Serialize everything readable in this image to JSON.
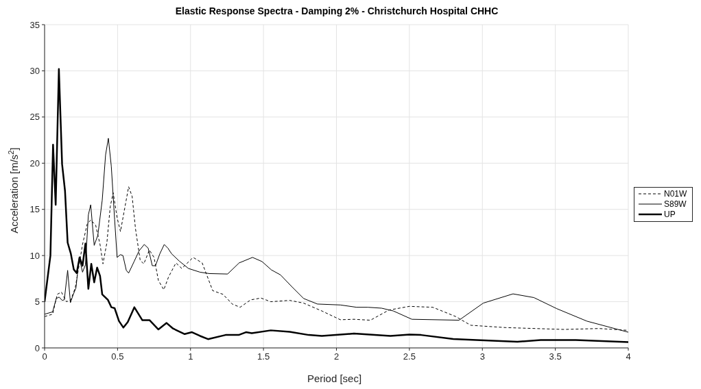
{
  "chart_data": {
    "type": "line",
    "title": "Elastic Response Spectra - Damping 2% - Christchurch Hospital CHHC",
    "xlabel": "Period [sec]",
    "ylabel": "Acceleration [m/s$^{2}$]",
    "xlim": [
      0,
      4
    ],
    "xticks": [
      0,
      0.5,
      1,
      1.5,
      2,
      2.5,
      3,
      3.5,
      4
    ],
    "ylim": [
      0,
      35
    ],
    "yticks": [
      0,
      5,
      10,
      15,
      20,
      25,
      30,
      35
    ],
    "grid": true,
    "legend": "right",
    "marker": "none",
    "series": [
      {
        "name": "N01W",
        "color": "#000000",
        "line_style": "dashed",
        "x": [
          0,
          0.055,
          0.087,
          0.115,
          0.15,
          0.18,
          0.21,
          0.237,
          0.26,
          0.292,
          0.316,
          0.35,
          0.38,
          0.4,
          0.427,
          0.45,
          0.47,
          0.497,
          0.52,
          0.55,
          0.576,
          0.6,
          0.623,
          0.655,
          0.68,
          0.718,
          0.75,
          0.78,
          0.817,
          0.85,
          0.9,
          0.94,
          1.018,
          1.08,
          1.152,
          1.223,
          1.286,
          1.34,
          1.412,
          1.483,
          1.55,
          1.68,
          1.775,
          1.9,
          2.027,
          2.12,
          2.233,
          2.36,
          2.5,
          2.66,
          2.817,
          2.92,
          3.16,
          3.56,
          3.8,
          4
        ],
        "values": [
          3.4,
          3.65,
          5.8,
          6.05,
          5,
          5.2,
          6.5,
          9,
          11.2,
          13.4,
          13.85,
          13.3,
          11.2,
          9.1,
          11.4,
          15.3,
          16.8,
          14.1,
          12.6,
          15.2,
          17.45,
          16.4,
          12.9,
          9.5,
          9.1,
          10.6,
          9.8,
          7.3,
          6.3,
          7.7,
          9.2,
          8.6,
          9.8,
          9.2,
          6.2,
          5.8,
          4.75,
          4.4,
          5.2,
          5.4,
          5,
          5.15,
          4.85,
          4,
          3.05,
          3.1,
          3,
          4.1,
          4.5,
          4.4,
          3.4,
          2.45,
          2.2,
          2,
          2.1,
          1.9
        ]
      },
      {
        "name": "S89W",
        "color": "#000000",
        "line_style": "solid",
        "x": [
          0,
          0.055,
          0.08,
          0.1,
          0.12,
          0.135,
          0.158,
          0.177,
          0.197,
          0.215,
          0.237,
          0.26,
          0.28,
          0.3,
          0.316,
          0.34,
          0.365,
          0.395,
          0.418,
          0.437,
          0.457,
          0.48,
          0.497,
          0.52,
          0.537,
          0.56,
          0.576,
          0.615,
          0.647,
          0.683,
          0.71,
          0.738,
          0.76,
          0.79,
          0.82,
          0.845,
          0.87,
          0.923,
          0.986,
          1.065,
          1.128,
          1.254,
          1.333,
          1.425,
          1.49,
          1.554,
          1.617,
          1.696,
          1.775,
          1.87,
          2.027,
          2.138,
          2.216,
          2.31,
          2.39,
          2.517,
          2.84,
          3.006,
          3.21,
          3.353,
          3.51,
          3.716,
          4
        ],
        "values": [
          3.65,
          3.9,
          5.35,
          5.5,
          5.15,
          5.2,
          8.4,
          4.9,
          5.8,
          6.5,
          9.8,
          8.2,
          9,
          14.4,
          15.5,
          11.1,
          12.2,
          16,
          20.9,
          22.7,
          19.7,
          13.9,
          9.8,
          10.1,
          10,
          8.4,
          8.1,
          9.4,
          10.5,
          11.2,
          10.8,
          8.9,
          8.9,
          10.2,
          11.2,
          10.8,
          10.2,
          9.4,
          8.6,
          8.2,
          8.05,
          8,
          9.2,
          9.8,
          9.35,
          8.45,
          7.9,
          6.6,
          5.35,
          4.75,
          4.65,
          4.4,
          4.4,
          4.3,
          4,
          3.1,
          3,
          4.85,
          5.85,
          5.45,
          4.25,
          2.9,
          1.7
        ]
      },
      {
        "name": "UP",
        "color": "#000000",
        "line_style": "solid",
        "x": [
          0,
          0.04,
          0.058,
          0.076,
          0.098,
          0.12,
          0.14,
          0.158,
          0.18,
          0.2,
          0.22,
          0.24,
          0.26,
          0.28,
          0.3,
          0.32,
          0.34,
          0.36,
          0.38,
          0.395,
          0.434,
          0.458,
          0.48,
          0.51,
          0.54,
          0.57,
          0.615,
          0.67,
          0.72,
          0.78,
          0.836,
          0.88,
          0.96,
          1.01,
          1.065,
          1.12,
          1.24,
          1.33,
          1.38,
          1.42,
          1.55,
          1.68,
          1.81,
          1.9,
          2.12,
          2.37,
          2.5,
          2.58,
          2.8,
          2.96,
          3.24,
          3.4,
          3.64,
          4
        ],
        "values": [
          5,
          10,
          22,
          15.5,
          30.2,
          19.9,
          17,
          11.4,
          10.2,
          8.5,
          8.1,
          9.8,
          8.9,
          11.3,
          6.4,
          9.1,
          7.1,
          8.7,
          7.8,
          5.8,
          5.2,
          4.4,
          4.3,
          2.9,
          2.2,
          2.8,
          4.4,
          3,
          3,
          2,
          2.7,
          2.1,
          1.5,
          1.7,
          1.3,
          0.95,
          1.4,
          1.4,
          1.7,
          1.6,
          1.9,
          1.75,
          1.4,
          1.3,
          1.55,
          1.3,
          1.45,
          1.4,
          0.97,
          0.85,
          0.66,
          0.85,
          0.85,
          0.63
        ]
      }
    ]
  }
}
